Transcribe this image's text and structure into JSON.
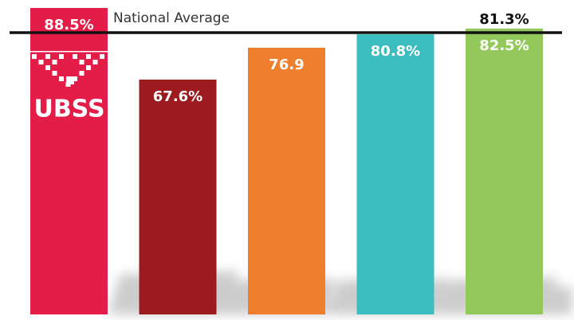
{
  "chart_data": {
    "type": "bar",
    "values": [
      88.5,
      67.6,
      76.9,
      80.8,
      82.5
    ],
    "value_labels": [
      "88.5%",
      "67.6%",
      "76.9",
      "80.8%",
      "82.5%"
    ],
    "colors": [
      "#e31c48",
      "#9b1b1f",
      "#ef7f2d",
      "#3bbcbf",
      "#93c95a"
    ],
    "reference_line": {
      "label": "National Average",
      "value": 81.3,
      "value_label": "81.3%",
      "color": "#111111"
    },
    "logo": "UBSS"
  }
}
